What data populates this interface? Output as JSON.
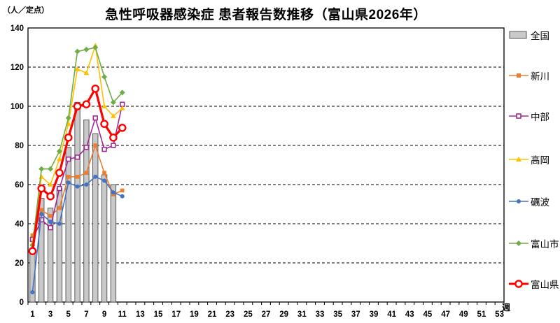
{
  "title": "急性呼吸器感染症 患者報告数推移（富山県2026年）",
  "chart_data": {
    "type": "bar+line combo",
    "title": "急性呼吸器感染症 患者報告数推移（富山県2026年）",
    "y_axis_unit": "（人／定点）",
    "x_axis_unit": "週",
    "ylim": [
      0,
      140
    ],
    "y_ticks": [
      0,
      20,
      40,
      60,
      80,
      100,
      120,
      140
    ],
    "x_slots": 53,
    "x_tick_labels": [
      "1",
      "3",
      "5",
      "7",
      "9",
      "11",
      "13",
      "15",
      "17",
      "19",
      "21",
      "23",
      "25",
      "27",
      "29",
      "31",
      "33",
      "35",
      "37",
      "39",
      "41",
      "43",
      "45",
      "47",
      "49",
      "51",
      "53"
    ],
    "grid": "horizontal-dashed",
    "legend_position": "right",
    "frame_color": "#000000",
    "series": [
      {
        "name": "全国",
        "type": "bar",
        "marker": "bar-swatch",
        "color": "#c9c9c9",
        "border": "#595959",
        "weeks": [
          1,
          2,
          3,
          4,
          5,
          6,
          7,
          8,
          9,
          10
        ],
        "values": [
          25,
          53,
          48,
          58,
          79,
          102,
          93,
          86,
          65,
          60
        ]
      },
      {
        "name": "新川",
        "type": "line",
        "marker": "square-filled",
        "color": "#ED7D31",
        "weeks": [
          1,
          2,
          3,
          4,
          5,
          6,
          7,
          8,
          9,
          10,
          11
        ],
        "values": [
          34,
          47,
          44,
          48,
          64,
          64,
          66,
          80,
          66,
          55,
          57
        ]
      },
      {
        "name": "中部",
        "type": "line",
        "marker": "square-open",
        "color": "#A02B93",
        "weeks": [
          1,
          2,
          3,
          4,
          5,
          6,
          7,
          8,
          9,
          10,
          11
        ],
        "values": [
          32,
          42,
          38,
          58,
          73,
          74,
          79,
          94,
          78,
          80,
          101
        ]
      },
      {
        "name": "高岡",
        "type": "line",
        "marker": "triangle-filled",
        "color": "#FFC000",
        "weeks": [
          1,
          2,
          3,
          4,
          5,
          6,
          7,
          8,
          9,
          10,
          11
        ],
        "values": [
          30,
          64,
          60,
          73,
          91,
          119,
          117,
          131,
          100,
          95,
          99
        ]
      },
      {
        "name": "礪波",
        "type": "line",
        "marker": "circle-filled",
        "color": "#4472C4",
        "weeks": [
          1,
          2,
          3,
          4,
          5,
          6,
          7,
          8,
          9,
          10,
          11
        ],
        "values": [
          5,
          45,
          41,
          40,
          61,
          59,
          60,
          64,
          62,
          56,
          54
        ]
      },
      {
        "name": "富山市",
        "type": "line",
        "marker": "diamond-filled",
        "color": "#70AD47",
        "weeks": [
          1,
          2,
          3,
          4,
          5,
          6,
          7,
          8,
          9,
          10,
          11
        ],
        "values": [
          29,
          68,
          68,
          77,
          94,
          128,
          129,
          130,
          115,
          102,
          107
        ]
      },
      {
        "name": "富山県",
        "type": "line",
        "marker": "circle-open",
        "color": "#FF0000",
        "emphasis": true,
        "weeks": [
          1,
          2,
          3,
          4,
          5,
          6,
          7,
          8,
          9,
          10,
          11
        ],
        "values": [
          26,
          58,
          54,
          66,
          84,
          100,
          101,
          109,
          91,
          84,
          89
        ]
      }
    ]
  }
}
